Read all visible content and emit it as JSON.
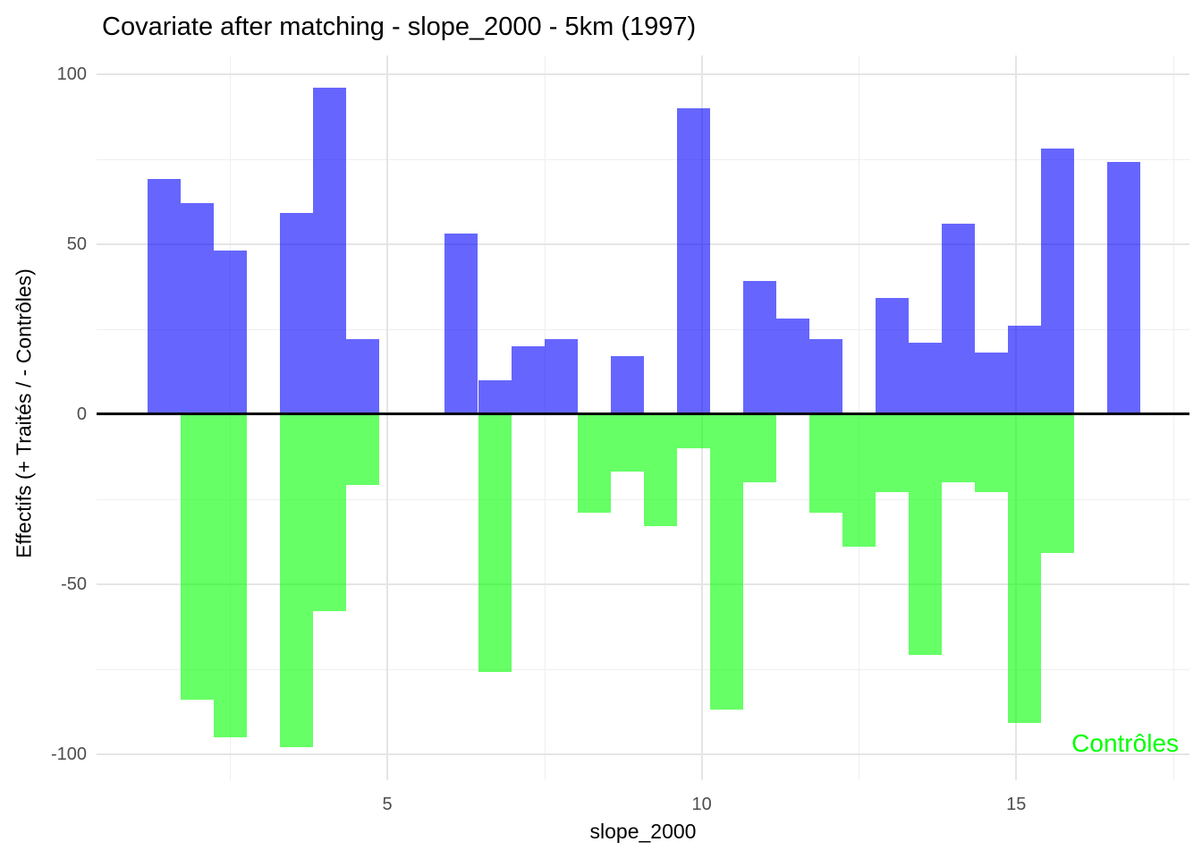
{
  "title": "Covariate after matching - slope_2000 - 5km (1997)",
  "axes": {
    "x_title": "slope_2000",
    "y_title": "Effectifs (+ Traités / - Contrôles)"
  },
  "annotation": {
    "label": "Contrôles",
    "color": "#00ff00"
  },
  "colors": {
    "treated_bar_hex": "#6666ff",
    "treated_bar_rgba": "rgba(0,0,255,0.6)",
    "control_bar_hex": "#66ff66",
    "control_bar_rgba": "rgba(0,255,0,0.6)",
    "zero_line": "#000000",
    "tick_label": "#4d4d4d",
    "grid_major": "#e5e5e5",
    "grid_minor": "#efefef",
    "annotation_text": "#00ff00"
  },
  "chart_data": {
    "type": "bar",
    "subtype": "diverging-histogram",
    "title": "Covariate after matching - slope_2000 - 5km (1997)",
    "xlabel": "slope_2000",
    "ylabel": "Effectifs (+ Traités / - Contrôles)",
    "grid": true,
    "legend_position": "none",
    "xlim": [
      0.4,
      17.75
    ],
    "ylim": [
      -108,
      106
    ],
    "x_ticks": [
      5,
      10,
      15
    ],
    "x_minor_ticks": [
      2.5,
      7.5,
      12.5,
      17.5
    ],
    "y_ticks": [
      100,
      50,
      0,
      -50,
      -100
    ],
    "y_minor_ticks": [
      75,
      25,
      -25,
      -75
    ],
    "bin_width": 0.527,
    "bin_centers": [
      1.45,
      1.98,
      2.5,
      3.03,
      3.55,
      4.08,
      4.61,
      5.13,
      5.66,
      6.18,
      6.71,
      7.24,
      7.76,
      8.29,
      8.82,
      9.34,
      9.87,
      10.39,
      10.92,
      11.45,
      11.97,
      12.5,
      13.03,
      13.55,
      14.08,
      14.61,
      15.13,
      15.66,
      16.19,
      16.71
    ],
    "series": [
      {
        "name": "Traités",
        "sign": "positive",
        "color": "#6666ff",
        "values": [
          69,
          62,
          48,
          0,
          59,
          96,
          22,
          0,
          0,
          53,
          10,
          20,
          22,
          0,
          17,
          0,
          90,
          0,
          39,
          28,
          22,
          0,
          34,
          21,
          56,
          18,
          26,
          78,
          0,
          74
        ]
      },
      {
        "name": "Contrôles",
        "sign": "negative",
        "color": "#66ff66",
        "values": [
          0,
          -84,
          -95,
          0,
          -98,
          -58,
          -21,
          0,
          0,
          0,
          -76,
          0,
          0,
          -29,
          -17,
          -33,
          -10,
          -87,
          -20,
          0,
          -29,
          -39,
          -23,
          -71,
          -20,
          -23,
          -91,
          -41,
          0,
          0
        ]
      }
    ],
    "zero_line": true,
    "annotation": {
      "text": "Contrôles",
      "x": 16.6,
      "y": -96,
      "color": "#00ff00"
    }
  }
}
